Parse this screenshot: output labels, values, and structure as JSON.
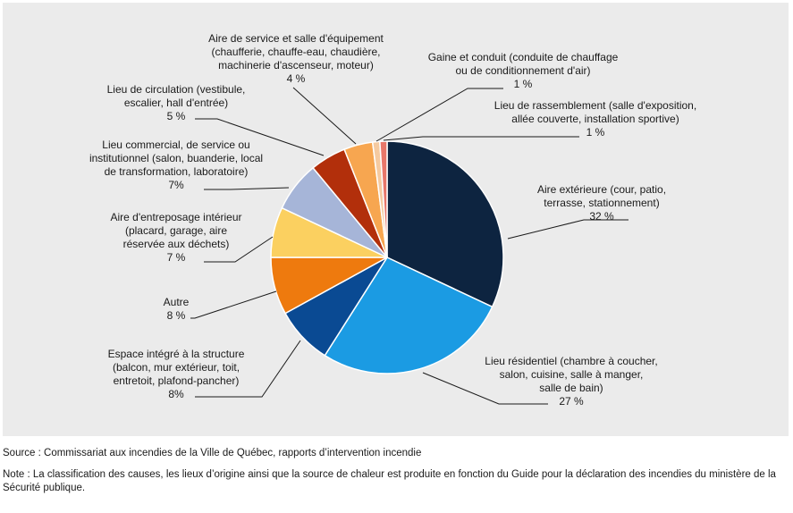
{
  "chart_data": {
    "type": "pie",
    "title": "",
    "slices": [
      {
        "name": "aire-exterieure",
        "lines": [
          "Aire extérieure (cour, patio,",
          "terrasse, stationnement)"
        ],
        "pct_label": "32 %",
        "value": 32,
        "color": "#0d2440"
      },
      {
        "name": "lieu-residentiel",
        "lines": [
          "Lieu résidentiel (chambre à coucher,",
          "salon, cuisine, salle à manger,",
          "salle de bain)"
        ],
        "pct_label": "27 %",
        "value": 27,
        "color": "#1b9be3"
      },
      {
        "name": "espace-integre",
        "lines": [
          "Espace intégré à la structure",
          "(balcon, mur extérieur, toit,",
          "entretoit, plafond-pancher)"
        ],
        "pct_label": "8%",
        "value": 8,
        "color": "#0a4a93"
      },
      {
        "name": "autre",
        "lines": [
          "Autre"
        ],
        "pct_label": "8 %",
        "value": 8,
        "color": "#ee7a0e"
      },
      {
        "name": "aire-entreposage",
        "lines": [
          "Aire d'entreposage intérieur",
          "(placard, garage, aire",
          "réservée aux déchets)"
        ],
        "pct_label": "7 %",
        "value": 7,
        "color": "#fbd060"
      },
      {
        "name": "lieu-commercial",
        "lines": [
          "Lieu commercial, de service ou",
          "institutionnel (salon, buanderie, local",
          "de transformation, laboratoire)"
        ],
        "pct_label": "7%",
        "value": 7,
        "color": "#a6b5d8"
      },
      {
        "name": "lieu-circulation",
        "lines": [
          "Lieu de circulation (vestibule,",
          "escalier, hall d'entrée)"
        ],
        "pct_label": "5 %",
        "value": 5,
        "color": "#b22f0b"
      },
      {
        "name": "aire-service",
        "lines": [
          "Aire de service et salle d'équipement",
          "(chaufferie, chauffe-eau, chaudière,",
          "machinerie d'ascenseur, moteur)"
        ],
        "pct_label": "4 %",
        "value": 4,
        "color": "#f7a650"
      },
      {
        "name": "gaine-conduit",
        "lines": [
          "Gaine et conduit (conduite de chauffage",
          "ou de conditionnement d'air)"
        ],
        "pct_label": "1 %",
        "value": 1,
        "color": "#f5caa0"
      },
      {
        "name": "lieu-rassemblement",
        "lines": [
          "Lieu de rassemblement (salle d'exposition,",
          "allée couverte, installation sportive)"
        ],
        "pct_label": "1 %",
        "value": 1,
        "color": "#e8776a"
      }
    ]
  },
  "footer": {
    "source": "Source : Commissariat aux incendies de la Ville de Québec, rapports d’intervention incendie",
    "note": "Note : La classification des causes, les lieux d’origine ainsi que la source de chaleur est produite en fonction du Guide pour la déclaration des incendies du ministère de la Sécurité publique."
  }
}
